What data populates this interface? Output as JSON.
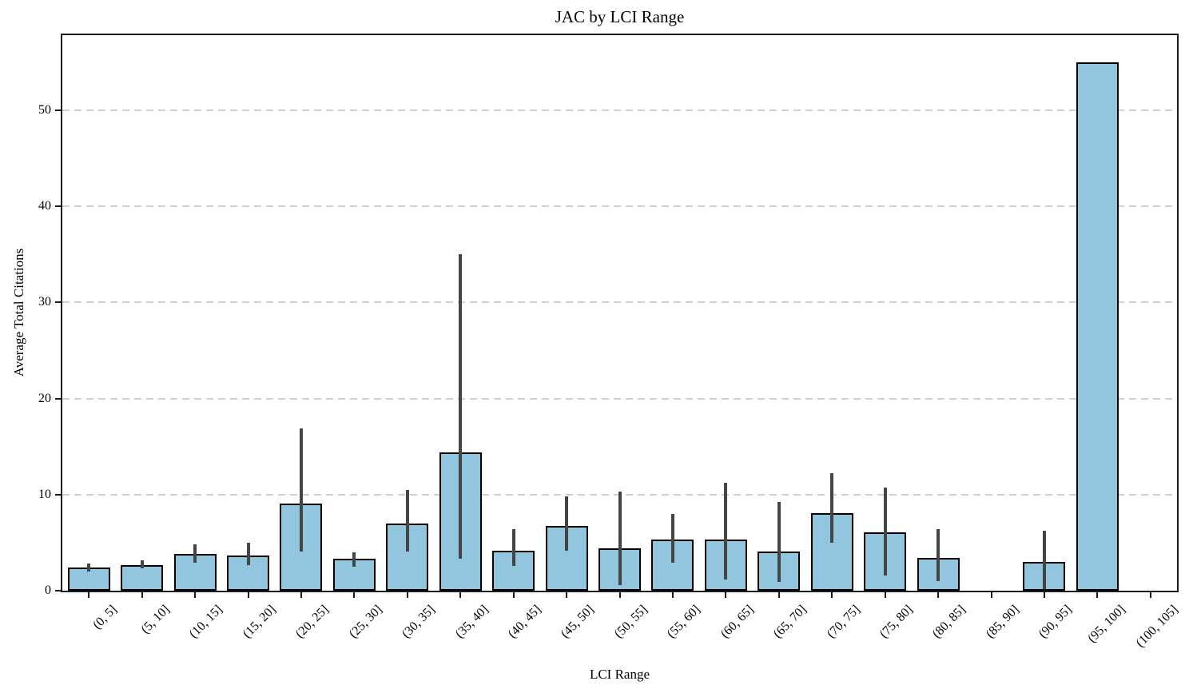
{
  "figure": {
    "title": "JAC by LCI Range",
    "xlabel": "LCI Range",
    "ylabel": "Average Total Citations"
  },
  "chart_data": {
    "type": "bar",
    "title": "JAC by LCI Range",
    "xlabel": "LCI Range",
    "ylabel": "Average Total Citations",
    "categories": [
      "(0, 5]",
      "(5, 10]",
      "(10, 15]",
      "(15, 20]",
      "(20, 25]",
      "(25, 30]",
      "(30, 35]",
      "(35, 40]",
      "(40, 45]",
      "(45, 50]",
      "(50, 55]",
      "(55, 60]",
      "(60, 65]",
      "(65, 70]",
      "(70, 75]",
      "(75, 80]",
      "(80, 85]",
      "(85, 90]",
      "(90, 95]",
      "(95, 100]",
      "(100, 105]"
    ],
    "values": [
      2.4,
      2.7,
      3.8,
      3.7,
      9.1,
      3.3,
      7.0,
      14.4,
      4.2,
      6.7,
      4.4,
      5.3,
      5.3,
      4.1,
      8.1,
      6.1,
      3.4,
      0,
      3.0,
      55.0,
      0
    ],
    "error_low": [
      2.0,
      2.3,
      2.9,
      2.7,
      4.1,
      2.5,
      4.1,
      3.3,
      2.6,
      4.2,
      0.6,
      2.9,
      1.2,
      0.9,
      5.0,
      1.6,
      1.0,
      null,
      0.2,
      null,
      null
    ],
    "error_high": [
      2.8,
      3.2,
      4.8,
      5.0,
      16.9,
      4.0,
      10.5,
      35.0,
      6.4,
      9.8,
      10.3,
      8.0,
      11.2,
      9.2,
      12.2,
      10.7,
      6.4,
      null,
      6.2,
      null,
      null
    ],
    "yticks": [
      0,
      10,
      20,
      30,
      40,
      50
    ],
    "ylim": [
      0,
      57.8
    ],
    "grid": "horizontal-dashed",
    "legend": "none",
    "bar_width_fraction": 0.8,
    "colors": {
      "bar_fill": "#92C5DE",
      "bar_edge": "#000000",
      "error_bar": "#454545",
      "grid_line": "#cfcfcf",
      "spine": "#1a1a1a",
      "text": "#000000",
      "background": "#ffffff"
    }
  }
}
